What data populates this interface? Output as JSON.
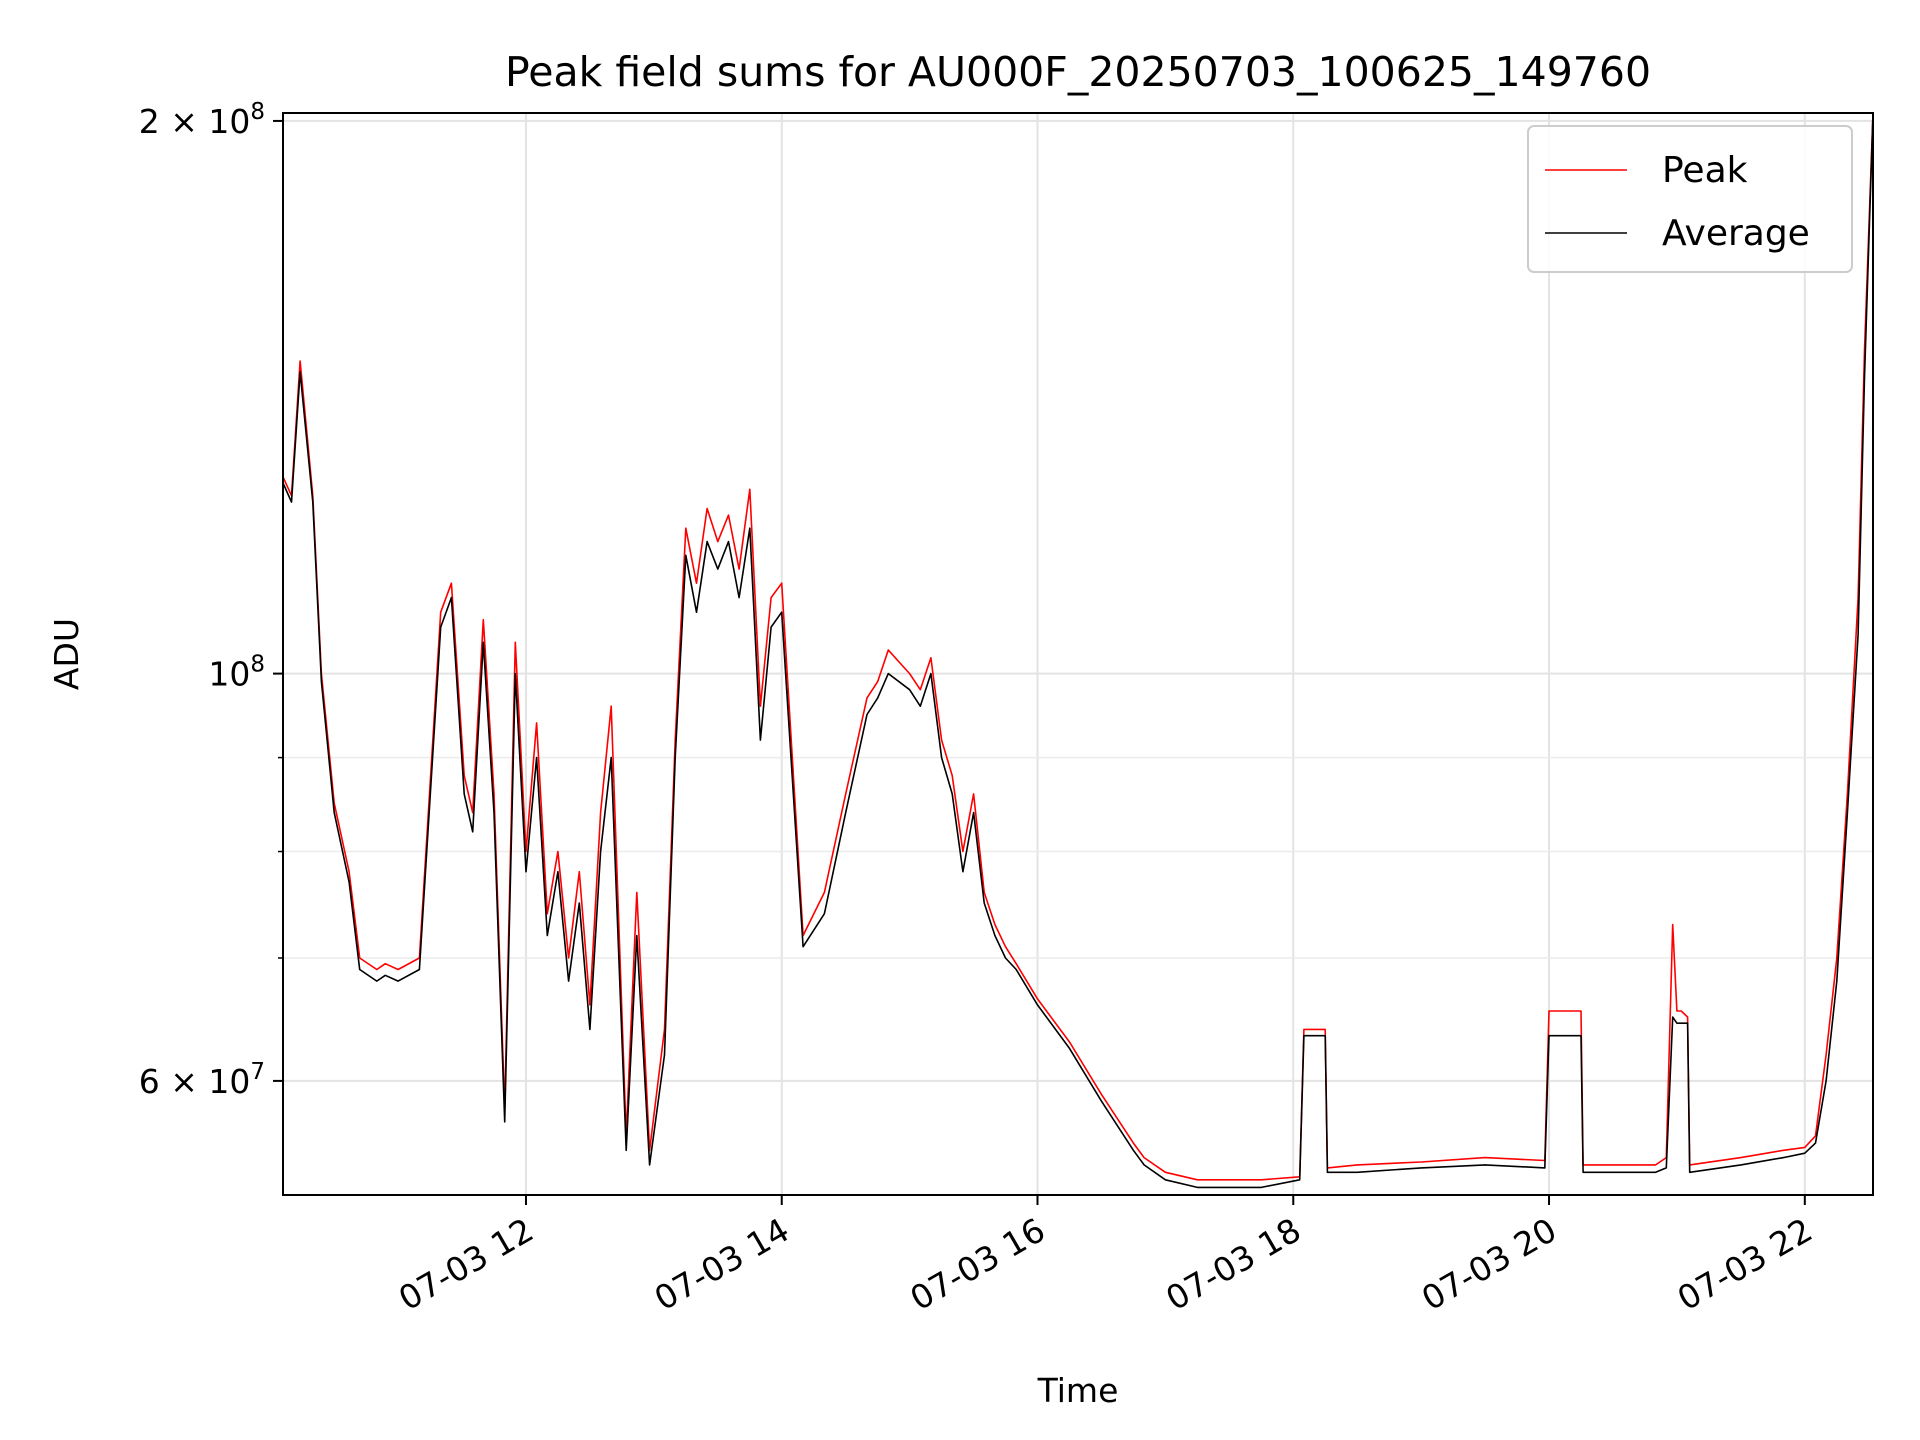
{
  "chart_data": {
    "type": "line",
    "title": "Peak field sums for AU000F_20250703_100625_149760",
    "xlabel": "Time",
    "ylabel": "ADU",
    "y_scale": "log",
    "grid": true,
    "legend_position": "top-right",
    "xlim": [
      "2025-07-03 10:06",
      "2025-07-03 22:32"
    ],
    "ylim": [
      52000000,
      202000000
    ],
    "x_ticks": [
      "2025-07-03 12:00",
      "2025-07-03 14:00",
      "2025-07-03 16:00",
      "2025-07-03 18:00",
      "2025-07-03 20:00",
      "2025-07-03 22:00"
    ],
    "x_tick_labels": [
      "07-03 12",
      "07-03 14",
      "07-03 16",
      "07-03 18",
      "07-03 20",
      "07-03 22"
    ],
    "y_ticks": [
      {
        "value": 200000000,
        "base": "2 × 10",
        "exp": "8"
      },
      {
        "value": 100000000,
        "base": "10",
        "exp": "8"
      },
      {
        "value": 60000000,
        "base": "6 × 10",
        "exp": "7"
      }
    ],
    "y_minor_ticks": [
      70000000,
      80000000,
      90000000
    ],
    "series": [
      {
        "name": "Peak",
        "color": "#ff0000",
        "x": [
          "2025-07-03 10:06",
          "2025-07-03 10:10",
          "2025-07-03 10:14",
          "2025-07-03 10:20",
          "2025-07-03 10:24",
          "2025-07-03 10:30",
          "2025-07-03 10:37",
          "2025-07-03 10:42",
          "2025-07-03 10:50",
          "2025-07-03 10:54",
          "2025-07-03 11:00",
          "2025-07-03 11:10",
          "2025-07-03 11:20",
          "2025-07-03 11:25",
          "2025-07-03 11:31",
          "2025-07-03 11:35",
          "2025-07-03 11:40",
          "2025-07-03 11:45",
          "2025-07-03 11:50",
          "2025-07-03 11:55",
          "2025-07-03 12:00",
          "2025-07-03 12:05",
          "2025-07-03 12:10",
          "2025-07-03 12:15",
          "2025-07-03 12:20",
          "2025-07-03 12:25",
          "2025-07-03 12:30",
          "2025-07-03 12:35",
          "2025-07-03 12:40",
          "2025-07-03 12:47",
          "2025-07-03 12:52",
          "2025-07-03 12:58",
          "2025-07-03 13:05",
          "2025-07-03 13:10",
          "2025-07-03 13:15",
          "2025-07-03 13:20",
          "2025-07-03 13:25",
          "2025-07-03 13:30",
          "2025-07-03 13:35",
          "2025-07-03 13:40",
          "2025-07-03 13:45",
          "2025-07-03 13:50",
          "2025-07-03 13:55",
          "2025-07-03 14:00",
          "2025-07-03 14:10",
          "2025-07-03 14:20",
          "2025-07-03 14:30",
          "2025-07-03 14:40",
          "2025-07-03 14:45",
          "2025-07-03 14:50",
          "2025-07-03 15:00",
          "2025-07-03 15:05",
          "2025-07-03 15:10",
          "2025-07-03 15:15",
          "2025-07-03 15:20",
          "2025-07-03 15:25",
          "2025-07-03 15:30",
          "2025-07-03 15:35",
          "2025-07-03 15:40",
          "2025-07-03 15:45",
          "2025-07-03 15:50",
          "2025-07-03 16:00",
          "2025-07-03 16:15",
          "2025-07-03 16:30",
          "2025-07-03 16:45",
          "2025-07-03 16:50",
          "2025-07-03 17:00",
          "2025-07-03 17:15",
          "2025-07-03 17:30",
          "2025-07-03 17:45",
          "2025-07-03 18:03",
          "2025-07-03 18:05",
          "2025-07-03 18:15",
          "2025-07-03 18:16",
          "2025-07-03 18:30",
          "2025-07-03 19:00",
          "2025-07-03 19:30",
          "2025-07-03 19:58",
          "2025-07-03 20:00",
          "2025-07-03 20:15",
          "2025-07-03 20:16",
          "2025-07-03 20:30",
          "2025-07-03 20:50",
          "2025-07-03 20:55",
          "2025-07-03 20:58",
          "2025-07-03 21:00",
          "2025-07-03 21:02",
          "2025-07-03 21:05",
          "2025-07-03 21:06",
          "2025-07-03 21:30",
          "2025-07-03 21:50",
          "2025-07-03 22:00",
          "2025-07-03 22:05",
          "2025-07-03 22:10",
          "2025-07-03 22:15",
          "2025-07-03 22:20",
          "2025-07-03 22:25",
          "2025-07-03 22:28",
          "2025-07-03 22:32"
        ],
        "y": [
          128000000,
          125000000,
          148000000,
          125000000,
          100000000,
          85000000,
          78000000,
          70000000,
          69000000,
          69500000,
          69000000,
          70000000,
          108000000,
          112000000,
          88000000,
          84000000,
          107000000,
          86000000,
          58000000,
          104000000,
          80000000,
          94000000,
          74000000,
          80000000,
          70000000,
          78000000,
          66000000,
          84000000,
          96000000,
          56000000,
          76000000,
          55000000,
          64000000,
          92000000,
          120000000,
          112000000,
          123000000,
          118000000,
          122000000,
          114000000,
          126000000,
          96000000,
          110000000,
          112000000,
          72000000,
          76000000,
          86000000,
          97000000,
          99000000,
          103000000,
          100000000,
          98000000,
          102000000,
          92000000,
          88000000,
          80000000,
          86000000,
          76000000,
          73000000,
          71000000,
          69500000,
          66500000,
          63000000,
          59000000,
          55500000,
          54500000,
          53500000,
          53000000,
          53000000,
          53000000,
          53200000,
          64000000,
          64000000,
          53800000,
          54000000,
          54200000,
          54500000,
          54300000,
          65500000,
          65500000,
          54000000,
          54000000,
          54000000,
          54500000,
          73000000,
          65500000,
          65500000,
          65000000,
          54000000,
          54500000,
          55000000,
          55200000,
          56000000,
          62000000,
          70000000,
          86000000,
          110000000,
          150000000,
          202000000
        ]
      },
      {
        "name": "Average",
        "color": "#000000",
        "x": [
          "2025-07-03 10:06",
          "2025-07-03 10:10",
          "2025-07-03 10:14",
          "2025-07-03 10:20",
          "2025-07-03 10:24",
          "2025-07-03 10:30",
          "2025-07-03 10:37",
          "2025-07-03 10:42",
          "2025-07-03 10:50",
          "2025-07-03 10:54",
          "2025-07-03 11:00",
          "2025-07-03 11:10",
          "2025-07-03 11:20",
          "2025-07-03 11:25",
          "2025-07-03 11:31",
          "2025-07-03 11:35",
          "2025-07-03 11:40",
          "2025-07-03 11:45",
          "2025-07-03 11:50",
          "2025-07-03 11:55",
          "2025-07-03 12:00",
          "2025-07-03 12:05",
          "2025-07-03 12:10",
          "2025-07-03 12:15",
          "2025-07-03 12:20",
          "2025-07-03 12:25",
          "2025-07-03 12:30",
          "2025-07-03 12:35",
          "2025-07-03 12:40",
          "2025-07-03 12:47",
          "2025-07-03 12:52",
          "2025-07-03 12:58",
          "2025-07-03 13:05",
          "2025-07-03 13:10",
          "2025-07-03 13:15",
          "2025-07-03 13:20",
          "2025-07-03 13:25",
          "2025-07-03 13:30",
          "2025-07-03 13:35",
          "2025-07-03 13:40",
          "2025-07-03 13:45",
          "2025-07-03 13:50",
          "2025-07-03 13:55",
          "2025-07-03 14:00",
          "2025-07-03 14:10",
          "2025-07-03 14:20",
          "2025-07-03 14:30",
          "2025-07-03 14:40",
          "2025-07-03 14:45",
          "2025-07-03 14:50",
          "2025-07-03 15:00",
          "2025-07-03 15:05",
          "2025-07-03 15:10",
          "2025-07-03 15:15",
          "2025-07-03 15:20",
          "2025-07-03 15:25",
          "2025-07-03 15:30",
          "2025-07-03 15:35",
          "2025-07-03 15:40",
          "2025-07-03 15:45",
          "2025-07-03 15:50",
          "2025-07-03 16:00",
          "2025-07-03 16:15",
          "2025-07-03 16:30",
          "2025-07-03 16:45",
          "2025-07-03 16:50",
          "2025-07-03 17:00",
          "2025-07-03 17:15",
          "2025-07-03 17:30",
          "2025-07-03 17:45",
          "2025-07-03 18:03",
          "2025-07-03 18:05",
          "2025-07-03 18:15",
          "2025-07-03 18:16",
          "2025-07-03 18:30",
          "2025-07-03 19:00",
          "2025-07-03 19:30",
          "2025-07-03 19:58",
          "2025-07-03 20:00",
          "2025-07-03 20:15",
          "2025-07-03 20:16",
          "2025-07-03 20:30",
          "2025-07-03 20:50",
          "2025-07-03 20:55",
          "2025-07-03 20:58",
          "2025-07-03 21:00",
          "2025-07-03 21:02",
          "2025-07-03 21:05",
          "2025-07-03 21:06",
          "2025-07-03 21:30",
          "2025-07-03 21:50",
          "2025-07-03 22:00",
          "2025-07-03 22:05",
          "2025-07-03 22:10",
          "2025-07-03 22:15",
          "2025-07-03 22:20",
          "2025-07-03 22:25",
          "2025-07-03 22:28",
          "2025-07-03 22:32"
        ],
        "y": [
          127000000,
          124000000,
          146000000,
          124000000,
          99000000,
          84000000,
          77000000,
          69000000,
          68000000,
          68500000,
          68000000,
          69000000,
          106000000,
          110000000,
          86000000,
          82000000,
          104000000,
          84000000,
          57000000,
          100000000,
          78000000,
          90000000,
          72000000,
          78000000,
          68000000,
          75000000,
          64000000,
          80000000,
          90000000,
          55000000,
          72000000,
          54000000,
          62000000,
          90000000,
          116000000,
          108000000,
          118000000,
          114000000,
          118000000,
          110000000,
          120000000,
          92000000,
          106000000,
          108000000,
          71000000,
          74000000,
          84000000,
          95000000,
          97000000,
          100000000,
          98000000,
          96000000,
          100000000,
          90000000,
          86000000,
          78000000,
          84000000,
          75000000,
          72000000,
          70000000,
          69000000,
          66000000,
          62500000,
          58500000,
          55000000,
          54000000,
          53000000,
          52500000,
          52500000,
          52500000,
          53000000,
          63500000,
          63500000,
          53500000,
          53500000,
          53800000,
          54000000,
          53800000,
          63500000,
          63500000,
          53500000,
          53500000,
          53500000,
          53800000,
          65000000,
          64500000,
          64500000,
          64500000,
          53500000,
          54000000,
          54500000,
          54800000,
          55500000,
          60000000,
          68000000,
          84000000,
          105000000,
          145000000,
          202000000
        ]
      }
    ]
  }
}
